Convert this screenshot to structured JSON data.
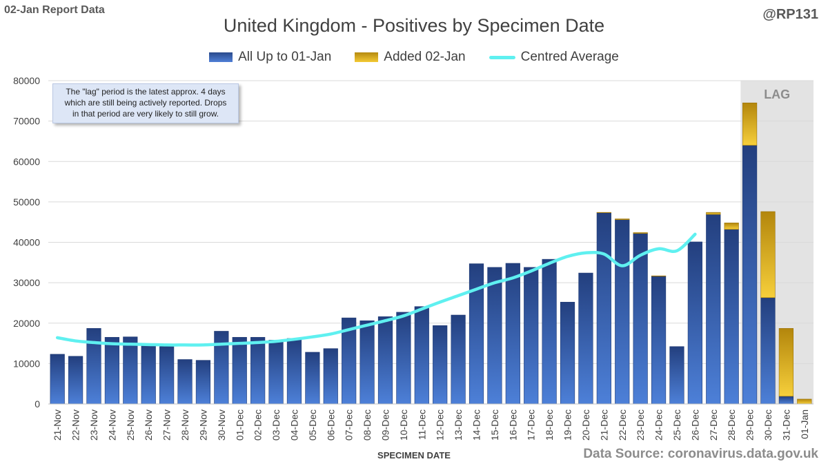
{
  "header": {
    "report_label": "02-Jan Report Data",
    "handle": "@RP131"
  },
  "note": {
    "line1": "The \"lag\" period is the latest approx. 4 days",
    "line2": "which are still being actively reported.  Drops",
    "line3": "in that period are very likely to still grow."
  },
  "source": "Data Source: coronavirus.data.gov.uk",
  "colors": {
    "series_base": "#3a62b0",
    "series_added": "#e6b421",
    "average_line": "#5ff0f0",
    "lag_shade": "#e3e3e3"
  },
  "chart_data": {
    "type": "bar",
    "title": "United Kingdom - Positives by Specimen Date",
    "xlabel": "SPECIMEN DATE",
    "ylabel": "",
    "ylim": [
      0,
      80000
    ],
    "yticks": [
      0,
      10000,
      20000,
      30000,
      40000,
      50000,
      60000,
      70000,
      80000
    ],
    "grid": true,
    "legend_position": "top",
    "stacked": true,
    "lag_label": "LAG",
    "lag_categories": [
      "29-Dec",
      "30-Dec",
      "31-Dec",
      "01-Jan"
    ],
    "categories": [
      "21-Nov",
      "22-Nov",
      "23-Nov",
      "24-Nov",
      "25-Nov",
      "26-Nov",
      "27-Nov",
      "28-Nov",
      "29-Nov",
      "30-Nov",
      "01-Dec",
      "02-Dec",
      "03-Dec",
      "04-Dec",
      "05-Dec",
      "06-Dec",
      "07-Dec",
      "08-Dec",
      "09-Dec",
      "10-Dec",
      "11-Dec",
      "12-Dec",
      "13-Dec",
      "14-Dec",
      "15-Dec",
      "16-Dec",
      "17-Dec",
      "18-Dec",
      "19-Dec",
      "20-Dec",
      "21-Dec",
      "22-Dec",
      "23-Dec",
      "24-Dec",
      "25-Dec",
      "26-Dec",
      "27-Dec",
      "28-Dec",
      "29-Dec",
      "30-Dec",
      "31-Dec",
      "01-Jan"
    ],
    "series": [
      {
        "name": "All Up to 01-Jan",
        "values": [
          12300,
          11800,
          18700,
          16500,
          16600,
          14600,
          14200,
          11000,
          10800,
          18000,
          16500,
          16500,
          15800,
          16200,
          12800,
          13700,
          21300,
          20600,
          21600,
          22700,
          24100,
          19400,
          22000,
          34700,
          33800,
          34800,
          33800,
          35800,
          25200,
          32400,
          47300,
          45600,
          42200,
          31600,
          14200,
          40100,
          46900,
          43200,
          64000,
          26300,
          1900,
          0
        ]
      },
      {
        "name": "Added 02-Jan",
        "values": [
          0,
          0,
          0,
          0,
          0,
          0,
          0,
          0,
          0,
          0,
          0,
          0,
          0,
          0,
          0,
          0,
          0,
          0,
          0,
          0,
          0,
          0,
          0,
          0,
          0,
          0,
          0,
          0,
          0,
          0,
          100,
          200,
          200,
          100,
          0,
          0,
          500,
          1600,
          10500,
          21300,
          16800,
          1200
        ]
      },
      {
        "name": "Centred Average",
        "type": "line",
        "values": [
          16400,
          15600,
          15200,
          14900,
          14800,
          14700,
          14600,
          14600,
          14600,
          14800,
          15000,
          15200,
          15500,
          16000,
          16600,
          17300,
          18400,
          19500,
          20600,
          21800,
          23500,
          25200,
          26800,
          28400,
          30000,
          31200,
          32900,
          34800,
          36500,
          37400,
          37100,
          34200,
          36800,
          38400,
          37900,
          42000,
          null,
          null,
          null,
          null,
          null,
          null
        ]
      }
    ]
  }
}
